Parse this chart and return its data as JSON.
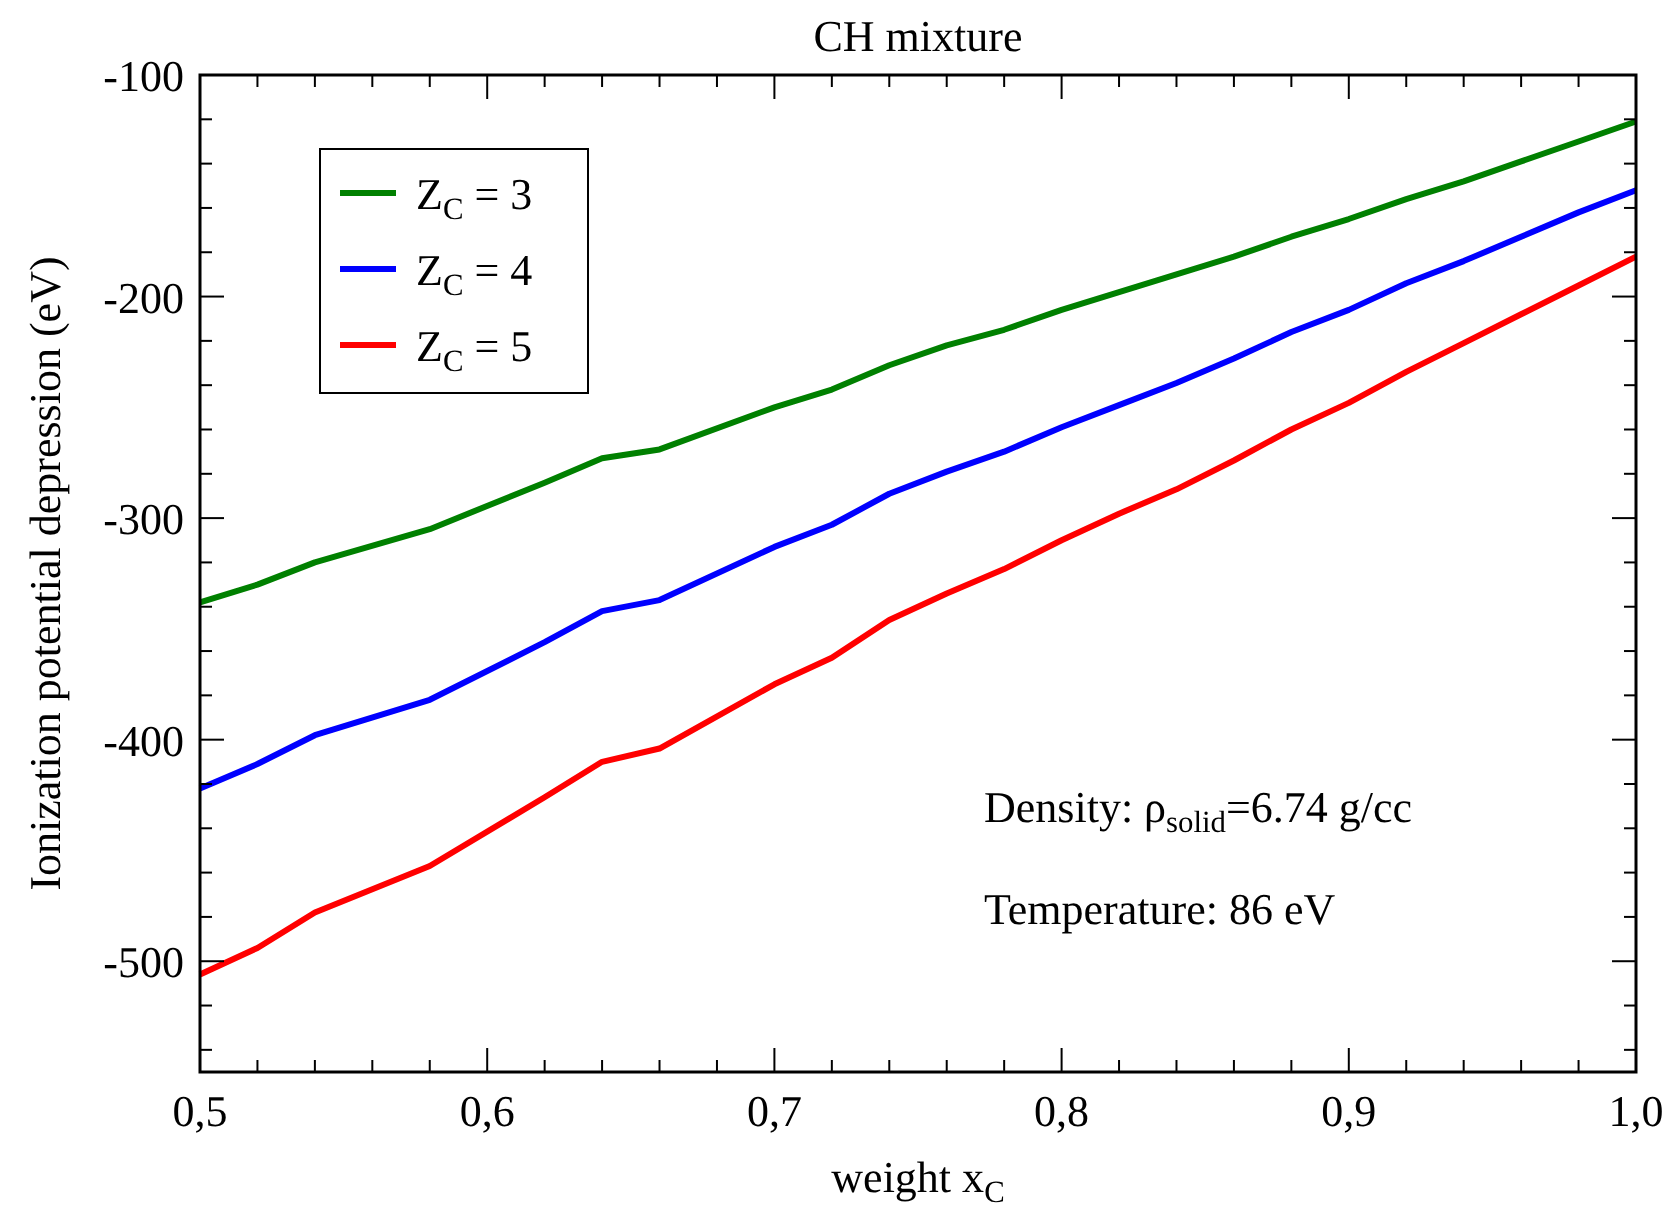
{
  "chart_data": {
    "type": "line",
    "title": "CH mixture",
    "xlabel": "weight x$_{C}$",
    "ylabel": "Ionization potential depression (eV)",
    "x": [
      0.5,
      0.52,
      0.54,
      0.58,
      0.62,
      0.64,
      0.66,
      0.7,
      0.72,
      0.74,
      0.76,
      0.78,
      0.8,
      0.82,
      0.84,
      0.86,
      0.88,
      0.9,
      0.92,
      0.94,
      0.96,
      0.98,
      1.0
    ],
    "series": [
      {
        "name": "Z$_{C}$ = 3",
        "color": "#008000",
        "values": [
          -338,
          -330,
          -320,
          -305,
          -284,
          -273,
          -269,
          -250,
          -242,
          -231,
          -222,
          -215,
          -206,
          -198,
          -190,
          -182,
          -173,
          -165,
          -156,
          -148,
          -139,
          -130,
          -121
        ]
      },
      {
        "name": "Z$_{C}$ = 4",
        "color": "#0000ff",
        "values": [
          -422,
          -411,
          -398,
          -382,
          -356,
          -342,
          -337,
          -313,
          -303,
          -289,
          -279,
          -270,
          -259,
          -249,
          -239,
          -228,
          -216,
          -206,
          -194,
          -184,
          -173,
          -162,
          -152
        ]
      },
      {
        "name": "Z$_{C}$ = 5",
        "color": "#ff0000",
        "values": [
          -506,
          -494,
          -478,
          -457,
          -426,
          -410,
          -404,
          -375,
          -363,
          -346,
          -334,
          -323,
          -310,
          -298,
          -287,
          -274,
          -260,
          -248,
          -234,
          -221,
          -208,
          -195,
          -182
        ]
      }
    ],
    "xlim": [
      0.5,
      1.0
    ],
    "xticks": [
      {
        "value": 0.5,
        "label": "0,5"
      },
      {
        "value": 0.52,
        "label": null
      },
      {
        "value": 0.54,
        "label": null
      },
      {
        "value": 0.56,
        "label": null
      },
      {
        "value": 0.58,
        "label": null
      },
      {
        "value": 0.6,
        "label": "0,6"
      },
      {
        "value": 0.62,
        "label": null
      },
      {
        "value": 0.64,
        "label": null
      },
      {
        "value": 0.66,
        "label": null
      },
      {
        "value": 0.68,
        "label": null
      },
      {
        "value": 0.7,
        "label": "0,7"
      },
      {
        "value": 0.72,
        "label": null
      },
      {
        "value": 0.74,
        "label": null
      },
      {
        "value": 0.76,
        "label": null
      },
      {
        "value": 0.78,
        "label": null
      },
      {
        "value": 0.8,
        "label": "0,8"
      },
      {
        "value": 0.82,
        "label": null
      },
      {
        "value": 0.84,
        "label": null
      },
      {
        "value": 0.86,
        "label": null
      },
      {
        "value": 0.88,
        "label": null
      },
      {
        "value": 0.9,
        "label": "0,9"
      },
      {
        "value": 0.92,
        "label": null
      },
      {
        "value": 0.94,
        "label": null
      },
      {
        "value": 0.96,
        "label": null
      },
      {
        "value": 0.98,
        "label": null
      },
      {
        "value": 1.0,
        "label": "1,0"
      }
    ],
    "ylim": [
      -550,
      -100
    ],
    "yticks": [
      {
        "value": -540,
        "label": null
      },
      {
        "value": -520,
        "label": null
      },
      -500,
      {
        "value": -480,
        "label": null
      },
      {
        "value": -460,
        "label": null
      },
      {
        "value": -440,
        "label": null
      },
      {
        "value": -420,
        "label": null
      },
      -400,
      {
        "value": -380,
        "label": null
      },
      {
        "value": -360,
        "label": null
      },
      {
        "value": -340,
        "label": null
      },
      {
        "value": -320,
        "label": null
      },
      -300,
      {
        "value": -280,
        "label": null
      },
      {
        "value": -260,
        "label": null
      },
      {
        "value": -240,
        "label": null
      },
      {
        "value": -220,
        "label": null
      },
      -200,
      {
        "value": -180,
        "label": null
      },
      {
        "value": -160,
        "label": null
      },
      {
        "value": -140,
        "label": null
      },
      {
        "value": -120,
        "label": null
      },
      -100
    ],
    "annotations": [
      "Density: ρ$_{solid}$=6.74 g/cc",
      "Temperature: 86 eV"
    ],
    "legend": "top left",
    "grid": false,
    "marker": "none",
    "line_style": "solid"
  }
}
